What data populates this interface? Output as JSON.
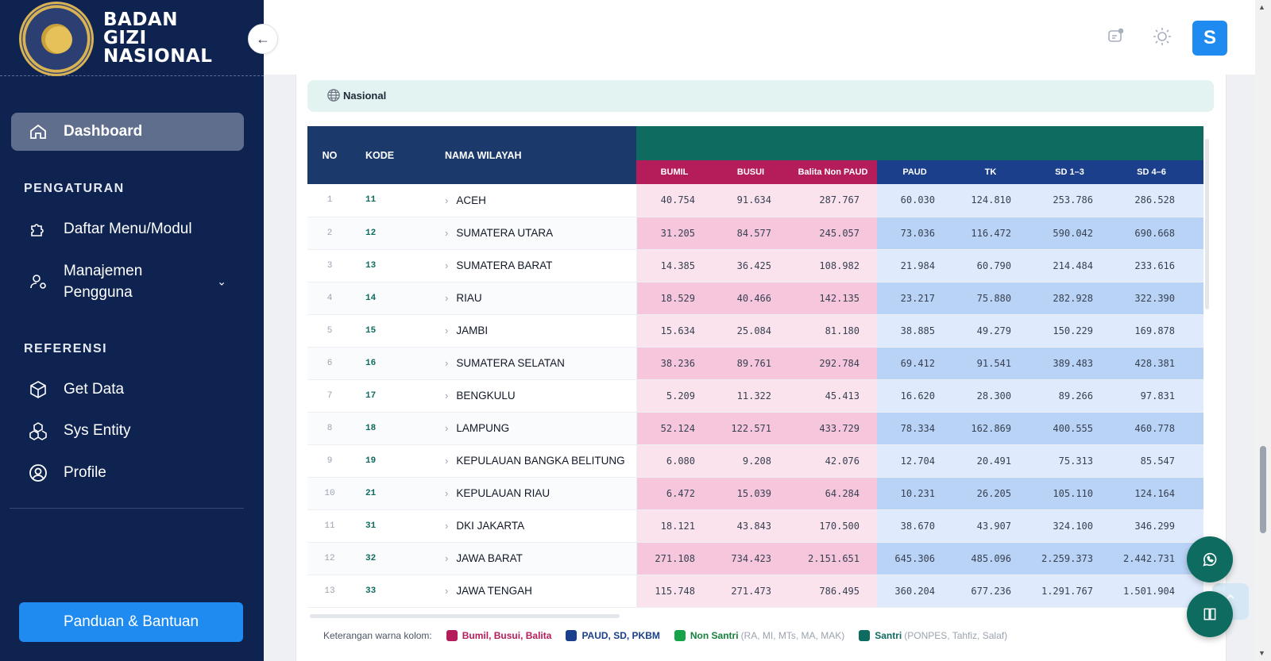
{
  "brand": {
    "line1": "BADAN",
    "line2": "GIZI",
    "line3": "NASIONAL",
    "seal_text": "BADAN GIZI NASIONAL · REPUBLIK INDONESIA"
  },
  "sidebar": {
    "dashboard": "Dashboard",
    "section_pengaturan": "PENGATURAN",
    "menu_modul": "Daftar Menu/Modul",
    "manajemen_line1": "Manajemen",
    "manajemen_line2": "Pengguna",
    "section_referensi": "REFERENSI",
    "get_data": "Get Data",
    "sys_entity": "Sys Entity",
    "profile": "Profile",
    "help_button": "Panduan & Bantuan"
  },
  "topbar": {
    "avatar_initial": "S",
    "icons": [
      "notification-icon",
      "theme-sun-icon"
    ]
  },
  "region": {
    "label": "Nasional"
  },
  "table": {
    "headers": {
      "no": "NO",
      "kode": "KODE",
      "nama": "NAMA WILAYAH"
    },
    "sub_headers": [
      "BUMIL",
      "BUSUI",
      "Balita Non PAUD",
      "PAUD",
      "TK",
      "SD 1–3",
      "SD 4–6"
    ],
    "rows": [
      {
        "no": "1",
        "kode": "11",
        "nama": "ACEH",
        "v": [
          "40.754",
          "91.634",
          "287.767",
          "60.030",
          "124.810",
          "253.786",
          "286.528"
        ]
      },
      {
        "no": "2",
        "kode": "12",
        "nama": "SUMATERA UTARA",
        "v": [
          "31.205",
          "84.577",
          "245.057",
          "73.036",
          "116.472",
          "590.042",
          "690.668"
        ]
      },
      {
        "no": "3",
        "kode": "13",
        "nama": "SUMATERA BARAT",
        "v": [
          "14.385",
          "36.425",
          "108.982",
          "21.984",
          "60.790",
          "214.484",
          "233.616"
        ]
      },
      {
        "no": "4",
        "kode": "14",
        "nama": "RIAU",
        "v": [
          "18.529",
          "40.466",
          "142.135",
          "23.217",
          "75.880",
          "282.928",
          "322.390"
        ]
      },
      {
        "no": "5",
        "kode": "15",
        "nama": "JAMBI",
        "v": [
          "15.634",
          "25.084",
          "81.180",
          "38.885",
          "49.279",
          "150.229",
          "169.878"
        ]
      },
      {
        "no": "6",
        "kode": "16",
        "nama": "SUMATERA SELATAN",
        "v": [
          "38.236",
          "89.761",
          "292.784",
          "69.412",
          "91.541",
          "389.483",
          "428.381"
        ]
      },
      {
        "no": "7",
        "kode": "17",
        "nama": "BENGKULU",
        "v": [
          "5.209",
          "11.322",
          "45.413",
          "16.620",
          "28.300",
          "89.266",
          "97.831"
        ]
      },
      {
        "no": "8",
        "kode": "18",
        "nama": "LAMPUNG",
        "v": [
          "52.124",
          "122.571",
          "433.729",
          "78.334",
          "162.869",
          "400.555",
          "460.778"
        ]
      },
      {
        "no": "9",
        "kode": "19",
        "nama": "KEPULAUAN BANGKA BELITUNG",
        "v": [
          "6.080",
          "9.208",
          "42.076",
          "12.704",
          "20.491",
          "75.313",
          "85.547"
        ]
      },
      {
        "no": "10",
        "kode": "21",
        "nama": "KEPULAUAN RIAU",
        "v": [
          "6.472",
          "15.039",
          "64.284",
          "10.231",
          "26.205",
          "105.110",
          "124.164"
        ]
      },
      {
        "no": "11",
        "kode": "31",
        "nama": "DKI JAKARTA",
        "v": [
          "18.121",
          "43.843",
          "170.500",
          "38.670",
          "43.907",
          "324.100",
          "346.299"
        ]
      },
      {
        "no": "12",
        "kode": "32",
        "nama": "JAWA BARAT",
        "v": [
          "271.108",
          "734.423",
          "2.151.651",
          "645.306",
          "485.096",
          "2.259.373",
          "2.442.731"
        ]
      },
      {
        "no": "13",
        "kode": "33",
        "nama": "JAWA TENGAH",
        "v": [
          "115.748",
          "271.473",
          "786.495",
          "360.204",
          "677.236",
          "1.291.767",
          "1.501.904"
        ]
      }
    ]
  },
  "legend": {
    "title": "Keterangan warna kolom:",
    "items": [
      {
        "label": "Bumil, Busui, Balita",
        "extra": "",
        "color": "#b51d5a"
      },
      {
        "label": "PAUD, SD, PKBM",
        "extra": "",
        "color": "#1b3f8b"
      },
      {
        "label": "Non Santri",
        "extra": "(RA, MI, MTs, MA, MAK)",
        "color": "#16a34a"
      },
      {
        "label": "Santri",
        "extra": "(PONPES, Tahfiz, Salaf)",
        "color": "#0e6b5f"
      }
    ]
  },
  "colors": {
    "sidebar": "#0f2350",
    "accent": "#1f8bf0",
    "teal": "#0e6b5f",
    "pink": "#b51d5a",
    "blue": "#1b3f8b"
  }
}
